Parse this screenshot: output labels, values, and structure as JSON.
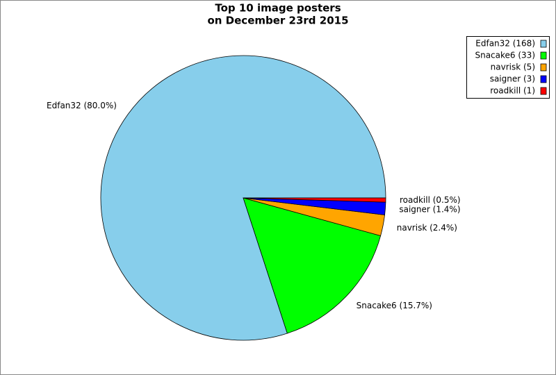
{
  "chart_data": {
    "type": "pie",
    "title": [
      "Top 10 image posters",
      "on December 23rd 2015"
    ],
    "categories": [
      "Edfan32",
      "Snacake6",
      "navrisk",
      "saigner",
      "roadkill"
    ],
    "values": [
      168,
      33,
      5,
      3,
      1
    ],
    "value_labels": [
      "Edfan32 (168)",
      "Snacake6 (33)",
      "navrisk (5)",
      "saigner (3)",
      "roadkill (1)"
    ],
    "slice_labels": [
      "Edfan32 (80.0%)",
      "Snacake6 (15.7%)",
      "navrisk (2.4%)",
      "saigner (1.4%)",
      "roadkill (0.5%)"
    ],
    "colors": [
      "#87ceeb",
      "#00ff00",
      "#ffa500",
      "#0000ff",
      "#ff0000"
    ],
    "legend": "top-right"
  }
}
